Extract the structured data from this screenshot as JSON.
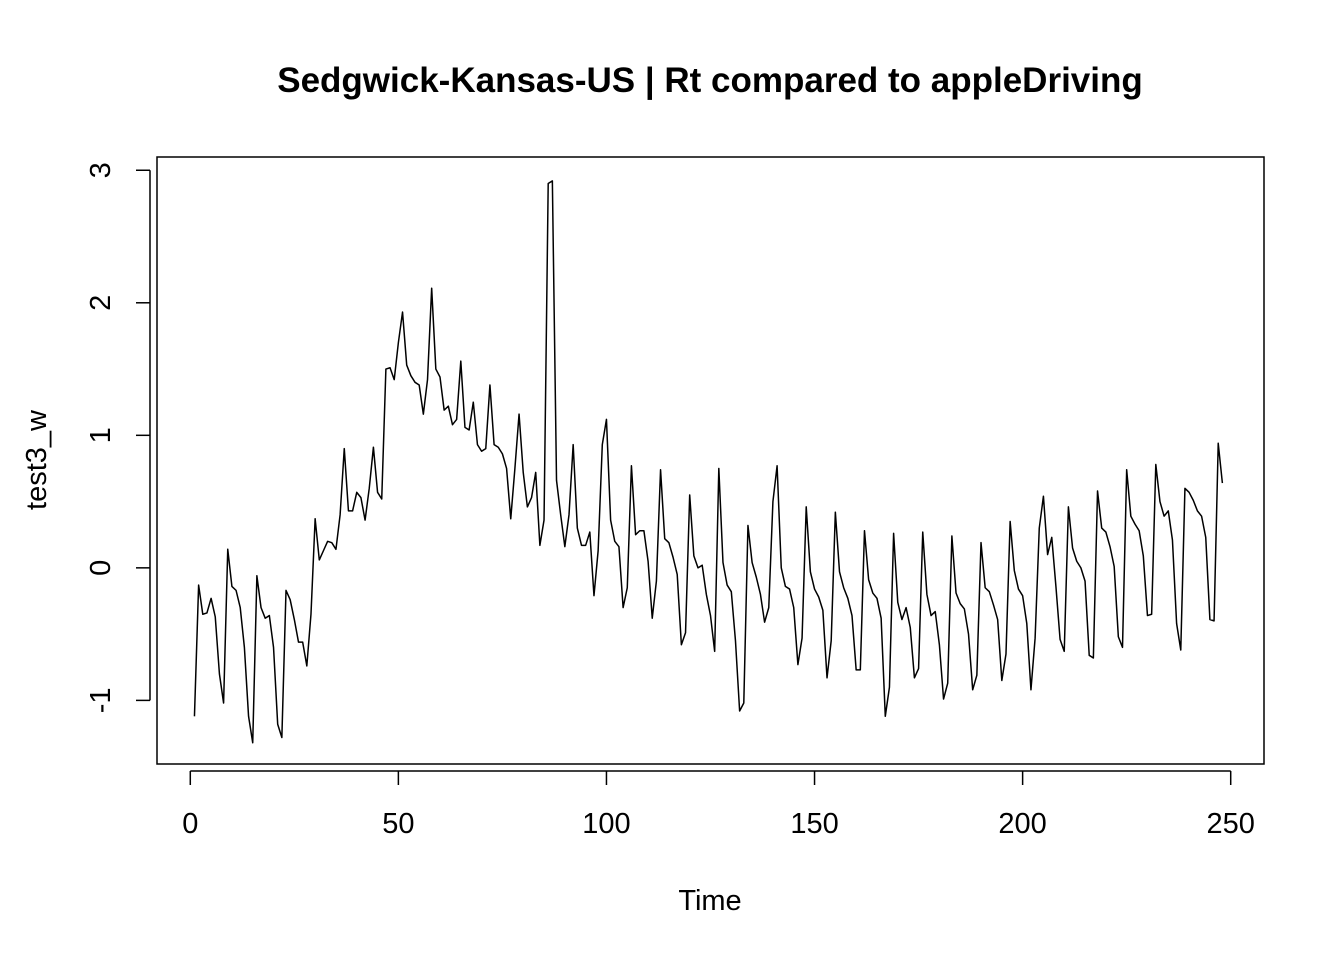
{
  "chart_data": {
    "type": "line",
    "title": "Sedgwick-Kansas-US | Rt compared to appleDriving",
    "xlabel": "Time",
    "ylabel": "test3_w",
    "xlim": [
      -8,
      258
    ],
    "ylim": [
      -1.48,
      3.1
    ],
    "xticks": [
      0,
      50,
      100,
      150,
      200,
      250
    ],
    "yticks": [
      -1,
      0,
      1,
      2,
      3
    ],
    "xtick_labels": [
      "0",
      "50",
      "100",
      "150",
      "200",
      "250"
    ],
    "ytick_labels": [
      "-1",
      "0",
      "1",
      "2",
      "3"
    ],
    "line_color": "#000000",
    "grid": false,
    "legend": "none",
    "series": [
      {
        "x_start": 1,
        "values": [
          -1.12,
          -0.13,
          -0.35,
          -0.34,
          -0.23,
          -0.37,
          -0.8,
          -1.02,
          0.14,
          -0.14,
          -0.17,
          -0.3,
          -0.6,
          -1.12,
          -1.32,
          -0.06,
          -0.3,
          -0.38,
          -0.36,
          -0.6,
          -1.18,
          -1.28,
          -0.17,
          -0.24,
          -0.39,
          -0.56,
          -0.56,
          -0.74,
          -0.35,
          0.37,
          0.06,
          0.13,
          0.2,
          0.19,
          0.14,
          0.4,
          0.9,
          0.43,
          0.43,
          0.57,
          0.53,
          0.36,
          0.6,
          0.91,
          0.57,
          0.52,
          1.5,
          1.51,
          1.42,
          1.7,
          1.93,
          1.53,
          1.45,
          1.4,
          1.38,
          1.16,
          1.42,
          2.11,
          1.5,
          1.44,
          1.19,
          1.22,
          1.08,
          1.12,
          1.56,
          1.06,
          1.04,
          1.25,
          0.93,
          0.88,
          0.9,
          1.38,
          0.93,
          0.91,
          0.86,
          0.75,
          0.37,
          0.75,
          1.16,
          0.72,
          0.46,
          0.53,
          0.72,
          0.17,
          0.36,
          2.9,
          2.92,
          0.66,
          0.4,
          0.16,
          0.4,
          0.93,
          0.3,
          0.17,
          0.17,
          0.27,
          -0.21,
          0.13,
          0.93,
          1.12,
          0.36,
          0.2,
          0.16,
          -0.3,
          -0.15,
          0.77,
          0.25,
          0.28,
          0.28,
          0.05,
          -0.38,
          -0.1,
          0.74,
          0.22,
          0.19,
          0.08,
          -0.05,
          -0.58,
          -0.49,
          0.55,
          0.09,
          0.0,
          0.02,
          -0.2,
          -0.36,
          -0.63,
          0.75,
          0.04,
          -0.13,
          -0.18,
          -0.55,
          -1.08,
          -1.02,
          0.32,
          0.04,
          -0.07,
          -0.2,
          -0.41,
          -0.3,
          0.5,
          0.77,
          0.0,
          -0.14,
          -0.16,
          -0.3,
          -0.73,
          -0.53,
          0.46,
          -0.03,
          -0.16,
          -0.22,
          -0.32,
          -0.83,
          -0.55,
          0.42,
          -0.03,
          -0.15,
          -0.23,
          -0.36,
          -0.77,
          -0.77,
          0.28,
          -0.09,
          -0.19,
          -0.23,
          -0.38,
          -1.12,
          -0.9,
          0.26,
          -0.26,
          -0.39,
          -0.3,
          -0.45,
          -0.83,
          -0.76,
          0.27,
          -0.2,
          -0.36,
          -0.33,
          -0.58,
          -0.99,
          -0.87,
          0.24,
          -0.19,
          -0.27,
          -0.31,
          -0.5,
          -0.92,
          -0.81,
          0.19,
          -0.15,
          -0.18,
          -0.28,
          -0.39,
          -0.85,
          -0.65,
          0.35,
          -0.02,
          -0.16,
          -0.21,
          -0.42,
          -0.92,
          -0.53,
          0.3,
          0.54,
          0.1,
          0.23,
          -0.14,
          -0.54,
          -0.63,
          0.46,
          0.15,
          0.05,
          0.0,
          -0.1,
          -0.66,
          -0.68,
          0.58,
          0.3,
          0.27,
          0.16,
          0.01,
          -0.52,
          -0.6,
          0.74,
          0.39,
          0.33,
          0.28,
          0.09,
          -0.36,
          -0.35,
          0.78,
          0.5,
          0.39,
          0.43,
          0.21,
          -0.42,
          -0.62,
          0.6,
          0.57,
          0.51,
          0.43,
          0.39,
          0.23,
          -0.39,
          -0.4,
          0.94,
          0.64
        ]
      }
    ]
  }
}
